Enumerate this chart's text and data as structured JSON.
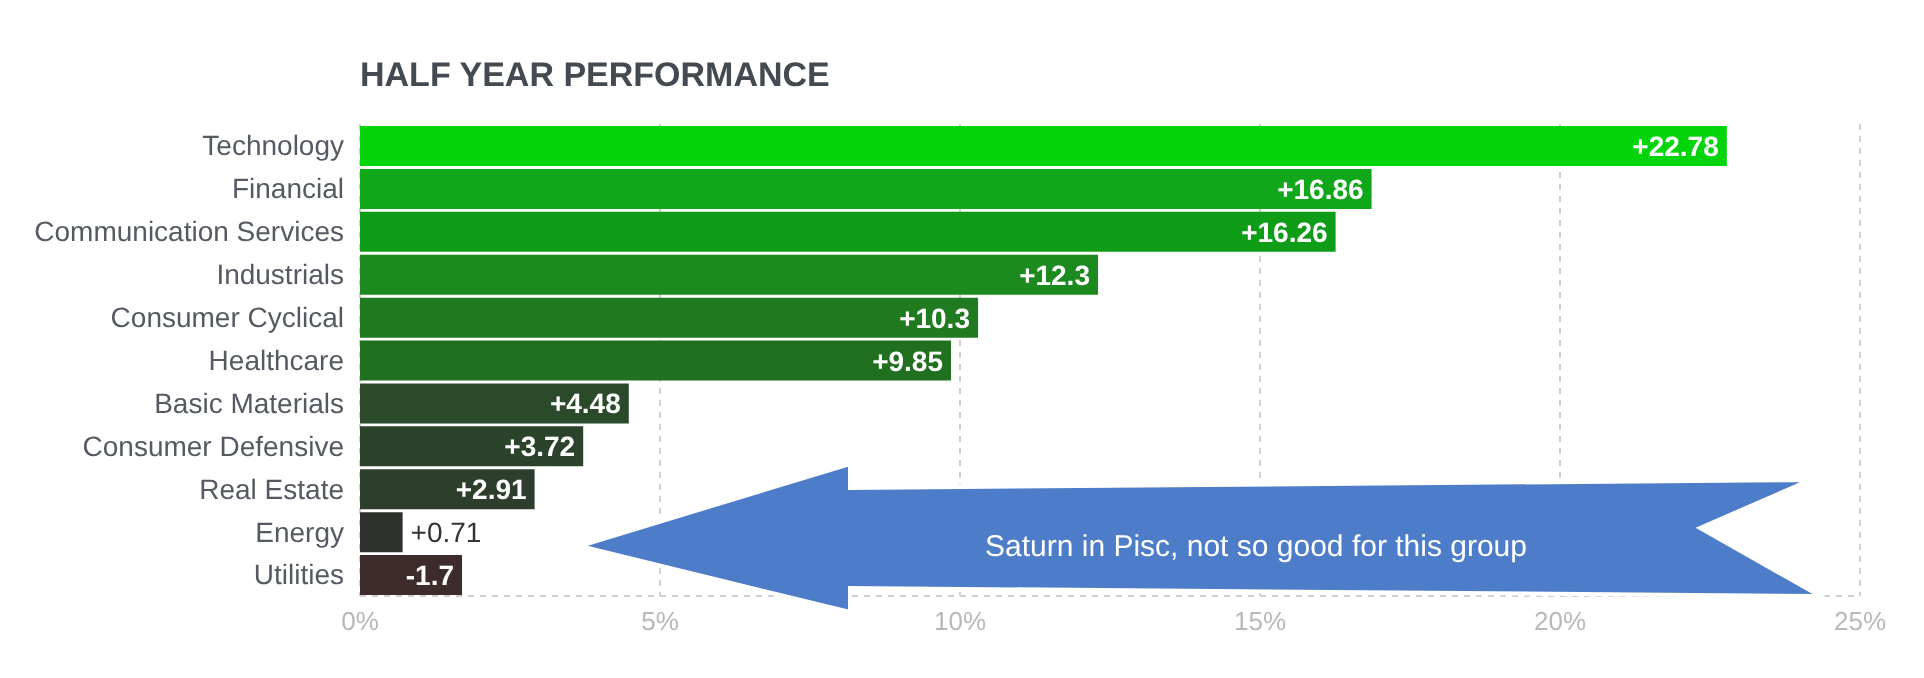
{
  "chart_data": {
    "type": "bar",
    "orientation": "horizontal",
    "title": "HALF YEAR PERFORMANCE",
    "categories": [
      "Technology",
      "Financial",
      "Communication Services",
      "Industrials",
      "Consumer Cyclical",
      "Healthcare",
      "Basic Materials",
      "Consumer Defensive",
      "Real Estate",
      "Energy",
      "Utilities"
    ],
    "values": [
      22.78,
      16.86,
      16.26,
      12.3,
      10.3,
      9.85,
      4.48,
      3.72,
      2.91,
      0.71,
      -1.7
    ],
    "base": [
      0,
      0,
      0,
      0,
      0,
      0,
      0,
      0,
      0,
      0,
      1.7
    ],
    "value_labels": [
      "+22.78",
      "+16.86",
      "+16.26",
      "+12.3",
      "+10.3",
      "+9.85",
      "+4.48",
      "+3.72",
      "+2.91",
      "+0.71",
      "-1.7"
    ],
    "colors": [
      "#03d40b",
      "#10a81a",
      "#0f9d18",
      "#1c8a1f",
      "#1f7a20",
      "#21701f",
      "#2a4a2a",
      "#2b432b",
      "#2d3e2d",
      "#2e302e",
      "#3e2b2b"
    ],
    "xlim": [
      0,
      25
    ],
    "xticks": [
      {
        "value": 0,
        "label": "0%"
      },
      {
        "value": 5,
        "label": "5%"
      },
      {
        "value": 10,
        "label": "10%"
      },
      {
        "value": 15,
        "label": "15%"
      },
      {
        "value": 20,
        "label": "20%"
      },
      {
        "value": 25,
        "label": "25%"
      }
    ],
    "grid": "x",
    "annotations": [
      "Saturn in Pisc, not so good for this group"
    ]
  }
}
